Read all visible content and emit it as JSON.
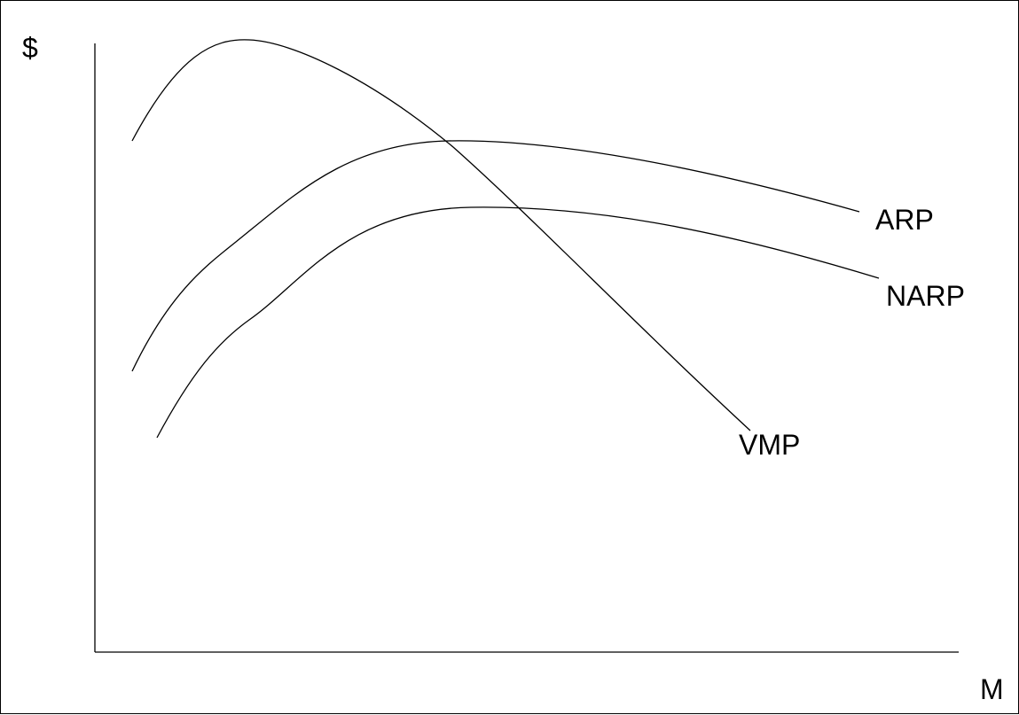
{
  "chart_data": {
    "type": "line",
    "title": "",
    "ylabel": "$",
    "xlabel": "M",
    "grid": false,
    "series": [
      {
        "name": "VMP",
        "label": "VMP"
      },
      {
        "name": "ARP",
        "label": "ARP"
      },
      {
        "name": "NARP",
        "label": "NARP"
      }
    ]
  }
}
